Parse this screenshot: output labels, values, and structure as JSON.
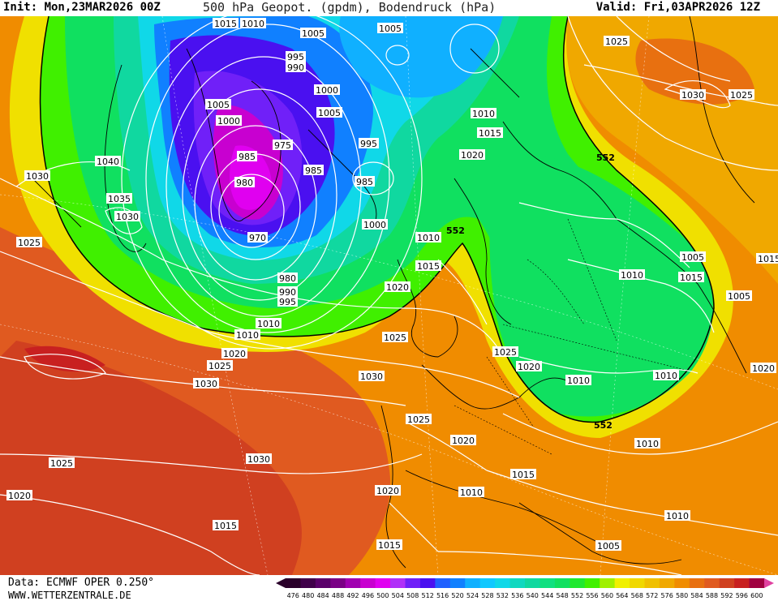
{
  "header": {
    "init": "Init: Mon,23MAR2026 00Z",
    "title": "500 hPa Geopot. (gpdm), Bodendruck (hPa)",
    "valid": "Valid: Fri,03APR2026 12Z"
  },
  "footer": {
    "source": "Data: ECMWF OPER 0.250°",
    "website": "WWW.WETTERZENTRALE.DE"
  },
  "colors": {
    "c476": "#3a003a",
    "c488": "#7a0085",
    "c496": "#e000f0",
    "c504": "#4a10f0",
    "c512": "#2060ff",
    "c520": "#10b0ff",
    "c528": "#10d8e8",
    "c536": "#10d8a0",
    "c544": "#10e060",
    "c552": "#40f000",
    "c560": "#f0f000",
    "c568": "#f0c000",
    "c576": "#f08c00",
    "c584": "#e05a20",
    "c592": "#c82020",
    "c600": "#a00040",
    "isobar": "#ffffff",
    "coast": "#000000",
    "contour552": "#000000"
  },
  "scale": {
    "labels": [
      "476",
      "480",
      "484",
      "488",
      "492",
      "496",
      "500",
      "504",
      "508",
      "512",
      "516",
      "520",
      "524",
      "528",
      "532",
      "536",
      "540",
      "544",
      "548",
      "552",
      "556",
      "560",
      "564",
      "568",
      "572",
      "576",
      "580",
      "584",
      "588",
      "592",
      "596",
      "600"
    ],
    "colors": [
      "#2a002a",
      "#40004a",
      "#5a006a",
      "#7a0085",
      "#a000b0",
      "#c800d0",
      "#e000f0",
      "#b030f8",
      "#7020f8",
      "#4a10f0",
      "#2060ff",
      "#1080ff",
      "#10b0ff",
      "#10c8ff",
      "#10d8e8",
      "#10d8c0",
      "#10d8a0",
      "#10e080",
      "#10e060",
      "#20e830",
      "#40f000",
      "#a0f000",
      "#f0f000",
      "#f0d800",
      "#f0c000",
      "#f0a800",
      "#f08c00",
      "#e87010",
      "#e05a20",
      "#d04020",
      "#c82020",
      "#a00040"
    ]
  },
  "isobar_labels": [
    {
      "text": "1015"
    },
    {
      "text": "1010"
    },
    {
      "text": "1005"
    },
    {
      "text": "1005"
    },
    {
      "text": "1025"
    },
    {
      "text": "995"
    },
    {
      "text": "990"
    },
    {
      "text": "1005"
    },
    {
      "text": "1000"
    },
    {
      "text": "1000"
    },
    {
      "text": "1005"
    },
    {
      "text": "1010"
    },
    {
      "text": "1030"
    },
    {
      "text": "1025"
    },
    {
      "text": "975"
    },
    {
      "text": "985"
    },
    {
      "text": "995"
    },
    {
      "text": "1015"
    },
    {
      "text": "1020"
    },
    {
      "text": "1040"
    },
    {
      "text": "985"
    },
    {
      "text": "980"
    },
    {
      "text": "985"
    },
    {
      "text": "1030"
    },
    {
      "text": "1035"
    },
    {
      "text": "1030"
    },
    {
      "text": "970"
    },
    {
      "text": "1000"
    },
    {
      "text": "1010"
    },
    {
      "text": "1025"
    },
    {
      "text": "980"
    },
    {
      "text": "990"
    },
    {
      "text": "995"
    },
    {
      "text": "1015"
    },
    {
      "text": "1020"
    },
    {
      "text": "1010"
    },
    {
      "text": "1010"
    },
    {
      "text": "1005"
    },
    {
      "text": "1010"
    },
    {
      "text": "1015"
    },
    {
      "text": "1020"
    },
    {
      "text": "1025"
    },
    {
      "text": "1030"
    },
    {
      "text": "1030"
    },
    {
      "text": "1025"
    },
    {
      "text": "1025"
    },
    {
      "text": "1020"
    },
    {
      "text": "1020"
    },
    {
      "text": "1030"
    },
    {
      "text": "1020"
    },
    {
      "text": "1015"
    },
    {
      "text": "1010"
    },
    {
      "text": "1015"
    },
    {
      "text": "1010"
    },
    {
      "text": "1020"
    },
    {
      "text": "1025"
    },
    {
      "text": "1015"
    },
    {
      "text": "1005"
    },
    {
      "text": "1010"
    },
    {
      "text": "1005"
    },
    {
      "text": "1010"
    },
    {
      "text": "1010"
    },
    {
      "text": "1020"
    },
    {
      "text": "1015"
    },
    {
      "text": "1025"
    }
  ],
  "contour_labels": [
    "552",
    "552",
    "552"
  ]
}
